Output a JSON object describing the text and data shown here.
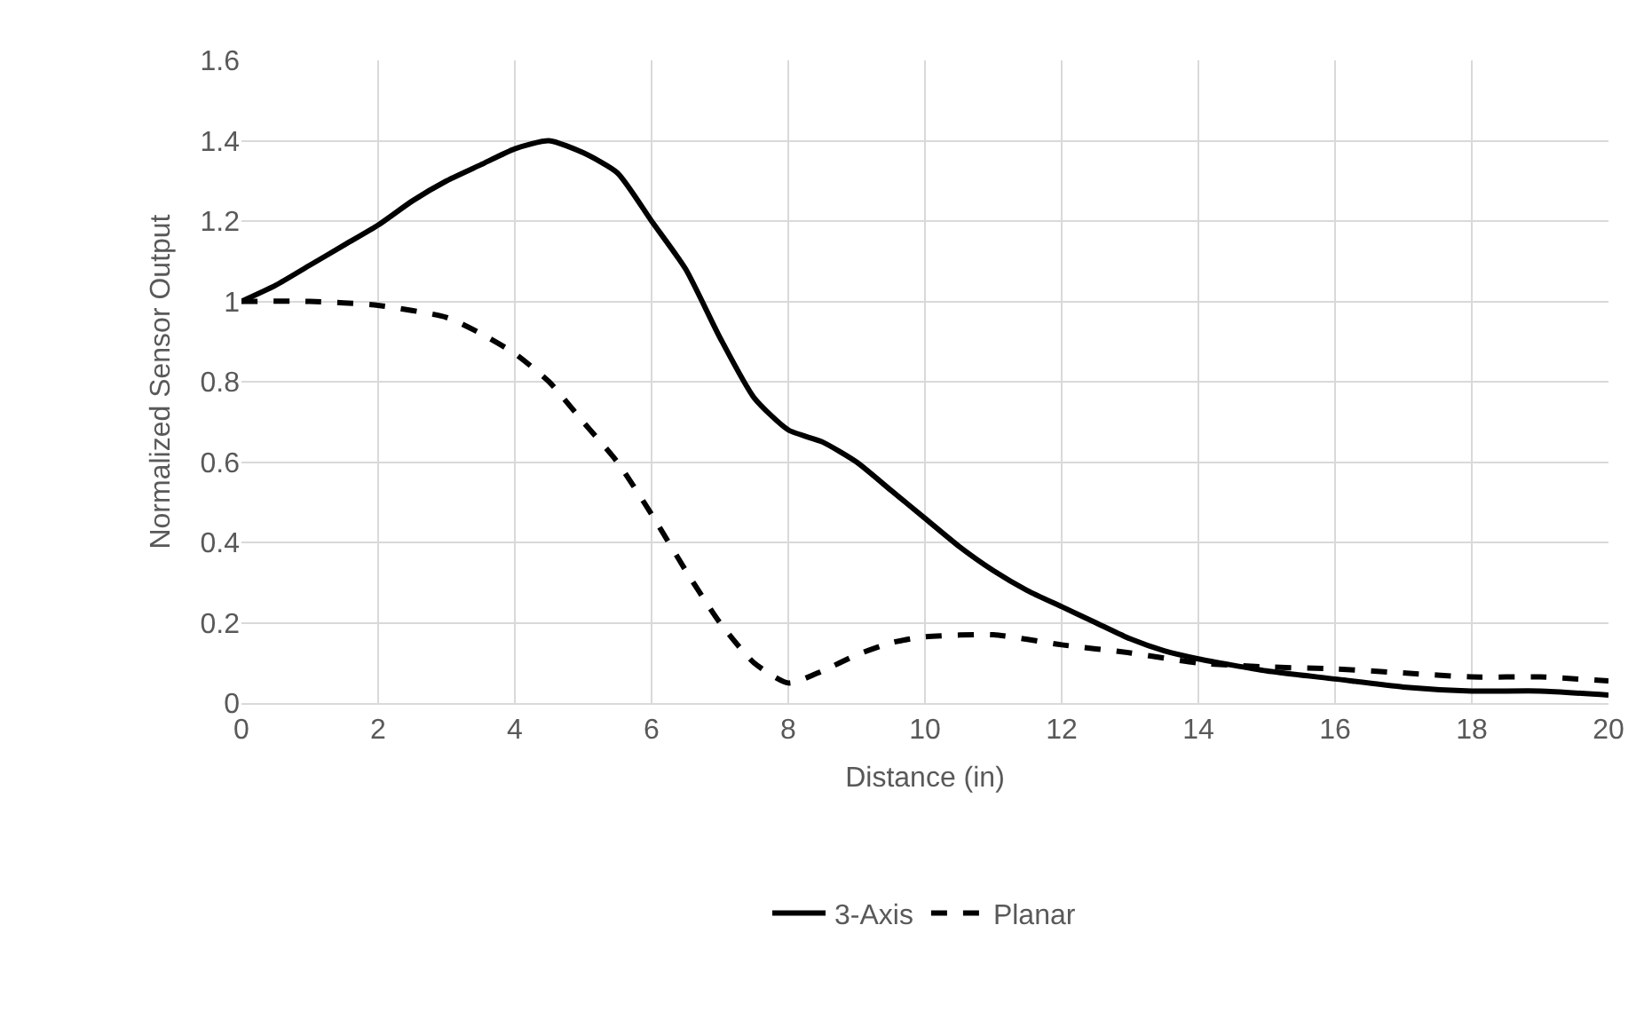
{
  "chart_data": {
    "type": "line",
    "xlabel": "Distance (in)",
    "ylabel": "Normalized Sensor Output",
    "xlim": [
      0,
      20
    ],
    "xticks": [
      0,
      2,
      4,
      6,
      8,
      10,
      12,
      14,
      16,
      18,
      20
    ],
    "ylim": [
      0,
      1.6
    ],
    "yticks": [
      0,
      0.2,
      0.4,
      0.6,
      0.8,
      1,
      1.2,
      1.4,
      1.6
    ],
    "grid": true,
    "legend": "bottom",
    "marker": "none",
    "series": [
      {
        "name": "3-Axis",
        "color": "#000000",
        "line_style": "solid",
        "x": [
          0,
          0.5,
          1,
          1.5,
          2,
          2.5,
          3,
          3.5,
          4,
          4.5,
          5,
          5.5,
          6,
          6.5,
          7,
          7.5,
          8,
          8.5,
          9,
          9.5,
          10,
          10.5,
          11,
          11.5,
          12,
          12.5,
          13,
          13.5,
          14,
          15,
          16,
          17,
          18,
          19,
          20
        ],
        "values": [
          1.0,
          1.04,
          1.09,
          1.14,
          1.19,
          1.25,
          1.3,
          1.34,
          1.38,
          1.4,
          1.37,
          1.32,
          1.2,
          1.08,
          0.91,
          0.76,
          0.68,
          0.65,
          0.6,
          0.53,
          0.46,
          0.39,
          0.33,
          0.28,
          0.24,
          0.2,
          0.16,
          0.13,
          0.11,
          0.08,
          0.06,
          0.04,
          0.03,
          0.03,
          0.02
        ]
      },
      {
        "name": "Planar",
        "color": "#000000",
        "line_style": "dashed",
        "x": [
          0,
          1,
          2,
          3,
          3.5,
          4,
          4.5,
          5,
          5.5,
          6,
          6.5,
          7,
          7.5,
          8,
          8.5,
          9,
          9.5,
          10,
          11,
          12,
          13,
          14,
          15,
          16,
          17,
          18,
          19,
          20
        ],
        "values": [
          1.0,
          1.0,
          0.99,
          0.96,
          0.92,
          0.87,
          0.8,
          0.7,
          0.6,
          0.47,
          0.33,
          0.2,
          0.1,
          0.05,
          0.08,
          0.12,
          0.15,
          0.165,
          0.17,
          0.145,
          0.125,
          0.1,
          0.09,
          0.085,
          0.075,
          0.065,
          0.065,
          0.055
        ]
      }
    ]
  }
}
